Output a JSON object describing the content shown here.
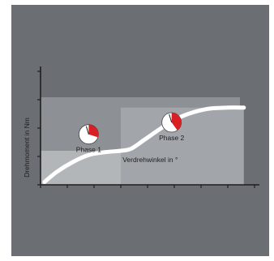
{
  "chart_data": {
    "type": "line",
    "title": "",
    "xlabel": "Verdrehwinkel in °",
    "ylabel": "Drehmoment in Nm",
    "xlim": [
      0,
      8
    ],
    "ylim": [
      0,
      4
    ],
    "x_ticks": [
      0,
      1,
      2,
      3,
      4,
      5,
      6,
      7,
      8
    ],
    "y_ticks": [
      0,
      1,
      2,
      3,
      4
    ],
    "grid": false,
    "legend": "none",
    "series": [
      {
        "name": "",
        "x": [
          0.15,
          0.6,
          1.2,
          1.8,
          2.4,
          3.0,
          3.4,
          3.9,
          4.6,
          5.3,
          6.2,
          7.0,
          7.6
        ],
        "y": [
          0.1,
          0.45,
          0.8,
          1.05,
          1.15,
          1.2,
          1.28,
          1.6,
          2.05,
          2.42,
          2.67,
          2.72,
          2.72
        ]
      }
    ],
    "phase_regions": [
      {
        "x": [
          0,
          3.0
        ],
        "y": [
          0,
          1.2
        ]
      },
      {
        "x": [
          3.0,
          7.6
        ],
        "y": [
          0,
          2.72
        ]
      }
    ],
    "annotations": [
      {
        "label": "Phase 1",
        "x": 1.8,
        "y": 1.38,
        "fill_fraction": 0.3
      },
      {
        "label": "Phase 2",
        "x": 4.9,
        "y": 1.8,
        "fill_fraction": 0.4
      }
    ],
    "colors": {
      "background": "#6b6e72",
      "panel": "#8d9196",
      "region_light": "#b3b6b9",
      "region_mid": "#a2a6aa",
      "curve": "#ffffff",
      "axis": "#1f1f1f",
      "gauge_fill": "#d81f26"
    },
    "icons": [
      "gauge-icon"
    ]
  }
}
